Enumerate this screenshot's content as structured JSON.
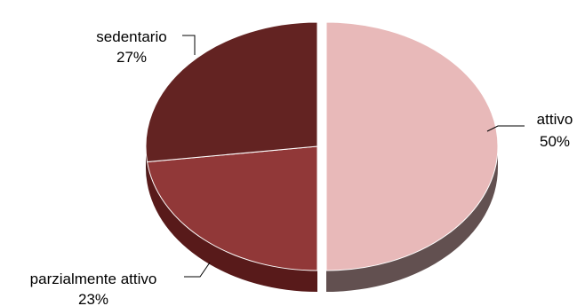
{
  "chart_data": {
    "type": "pie",
    "style": "3d-exploded",
    "title": "",
    "legend": "none",
    "slices": [
      {
        "label": "attivo",
        "value": 50,
        "value_label": "50%",
        "color": "#e8b9b9",
        "side_color": "#625050"
      },
      {
        "label": "parzialmente attivo",
        "value": 23,
        "value_label": "23%",
        "color": "#913838",
        "side_color": "#581a1a"
      },
      {
        "label": "sedentario",
        "value": 27,
        "value_label": "27%",
        "color": "#632322",
        "side_color": "#3f1312"
      }
    ]
  }
}
